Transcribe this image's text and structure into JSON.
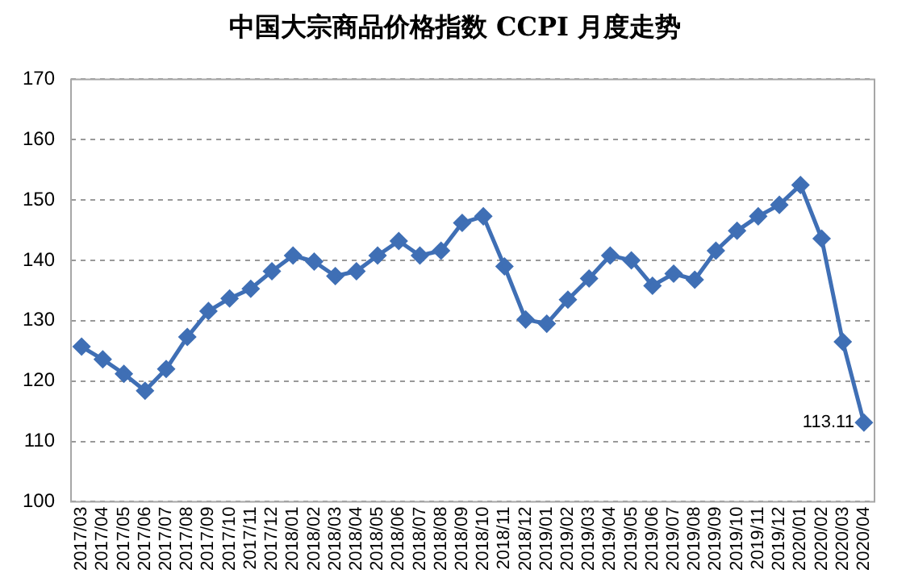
{
  "chart_data": {
    "type": "line",
    "title": "中国大宗商品价格指数 CCPI 月度走势",
    "categories": [
      "2017/03",
      "2017/04",
      "2017/05",
      "2017/06",
      "2017/07",
      "2017/08",
      "2017/09",
      "2017/10",
      "2017/11",
      "2017/12",
      "2018/01",
      "2018/02",
      "2018/03",
      "2018/04",
      "2018/05",
      "2018/06",
      "2018/07",
      "2018/08",
      "2018/09",
      "2018/10",
      "2018/11",
      "2018/12",
      "2019/01",
      "2019/02",
      "2019/03",
      "2019/04",
      "2019/05",
      "2019/06",
      "2019/07",
      "2019/08",
      "2019/09",
      "2019/10",
      "2019/11",
      "2019/12",
      "2020/01",
      "2020/02",
      "2020/03",
      "2020/04"
    ],
    "series": [
      {
        "color": "#3f6fb5",
        "values": [
          125.7,
          123.6,
          121.2,
          118.4,
          122.0,
          127.3,
          131.6,
          133.7,
          135.3,
          138.2,
          140.8,
          139.8,
          137.4,
          138.2,
          140.8,
          143.2,
          140.8,
          141.6,
          146.2,
          147.3,
          139.0,
          130.2,
          129.5,
          133.5,
          137.0,
          140.8,
          140.0,
          135.8,
          137.8,
          136.8,
          141.6,
          144.9,
          147.3,
          149.2,
          152.5,
          143.6,
          126.5,
          113.11
        ],
        "value_labels": [
          null,
          null,
          null,
          null,
          null,
          null,
          null,
          null,
          null,
          null,
          null,
          null,
          null,
          null,
          null,
          null,
          null,
          null,
          null,
          null,
          null,
          null,
          null,
          null,
          null,
          null,
          null,
          null,
          null,
          null,
          null,
          null,
          null,
          null,
          null,
          null,
          null,
          "113.11"
        ]
      }
    ],
    "ylim": [
      100,
      170
    ],
    "yticks": [
      100,
      110,
      120,
      130,
      140,
      150,
      160,
      170
    ],
    "grid": "y",
    "legend": false,
    "marker": "diamond",
    "line_style": "solid"
  }
}
